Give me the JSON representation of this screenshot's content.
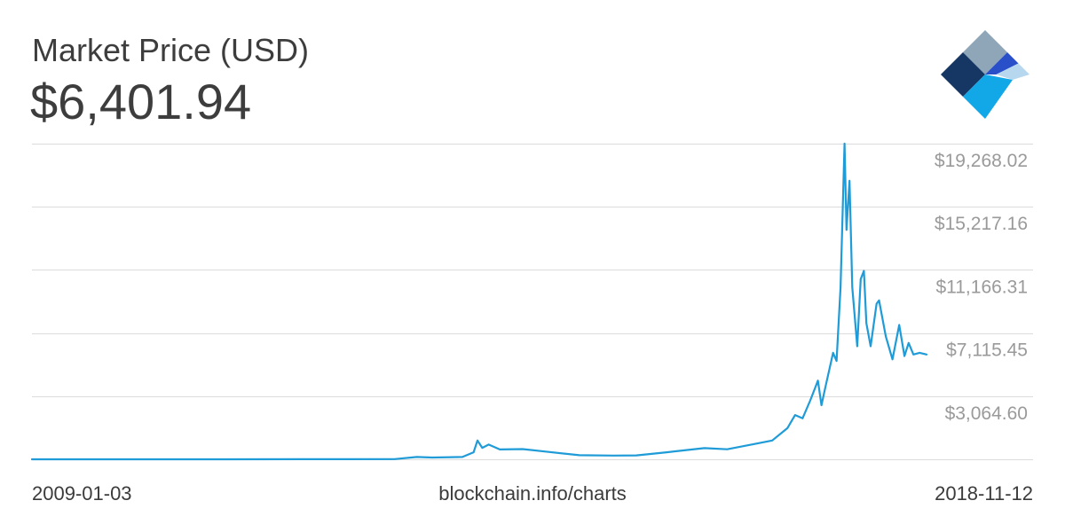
{
  "header": {
    "title": "Market Price (USD)",
    "current_value": "$6,401.94"
  },
  "logo": {
    "icon": "blockchain-diamond-logo",
    "colors": [
      "#8fa6b8",
      "#163764",
      "#2950c9",
      "#12a8e8",
      "#b6d7ee"
    ]
  },
  "footer": {
    "start_date": "2009-01-03",
    "source": "blockchain.info/charts",
    "end_date": "2018-11-12"
  },
  "chart_data": {
    "type": "line",
    "title": "Market Price (USD)",
    "xlabel": "",
    "ylabel": "",
    "xlim": [
      "2009-01-03",
      "2018-11-12"
    ],
    "ylim": [
      0,
      19268.02
    ],
    "yticks": [
      3064.6,
      7115.45,
      11166.31,
      15217.16,
      19268.02
    ],
    "ytick_labels": [
      "$3,064.60",
      "$7,115.45",
      "$11,166.31",
      "$15,217.16",
      "$19,268.02"
    ],
    "grid": true,
    "line_color": "#1f9bd7",
    "series": [
      {
        "x": [
          "2009-01-03",
          "2010-01-01",
          "2011-01-01",
          "2012-01-01",
          "2012-07-01",
          "2013-01-01",
          "2013-04-01",
          "2013-06-01",
          "2013-10-01",
          "2013-11-15",
          "2013-12-01",
          "2013-12-20",
          "2014-01-15",
          "2014-03-01",
          "2014-06-01",
          "2014-09-01",
          "2015-01-15",
          "2015-06-01",
          "2015-09-01",
          "2016-01-01",
          "2016-06-01",
          "2016-09-01",
          "2017-01-01",
          "2017-03-01",
          "2017-05-01",
          "2017-06-01",
          "2017-07-01",
          "2017-08-01",
          "2017-09-01",
          "2017-09-15",
          "2017-10-01",
          "2017-11-01",
          "2017-11-15",
          "2017-12-01",
          "2017-12-17",
          "2017-12-25",
          "2018-01-06",
          "2018-01-17",
          "2018-02-06",
          "2018-02-20",
          "2018-03-05",
          "2018-03-15",
          "2018-04-01",
          "2018-04-25",
          "2018-05-05",
          "2018-06-01",
          "2018-06-28",
          "2018-07-25",
          "2018-08-15",
          "2018-09-01",
          "2018-09-20",
          "2018-10-15",
          "2018-11-12"
        ],
        "values": [
          0,
          0.3,
          0.3,
          5,
          7,
          13,
          140,
          110,
          140,
          430,
          1150,
          700,
          900,
          600,
          620,
          470,
          250,
          230,
          240,
          430,
          680,
          610,
          970,
          1150,
          1900,
          2700,
          2500,
          3600,
          4800,
          3300,
          4400,
          6500,
          6000,
          10500,
          19268,
          14000,
          17000,
          10500,
          6900,
          11000,
          11500,
          8300,
          6900,
          9500,
          9700,
          7500,
          6100,
          8200,
          6300,
          7100,
          6400,
          6500,
          6400
        ]
      }
    ]
  }
}
